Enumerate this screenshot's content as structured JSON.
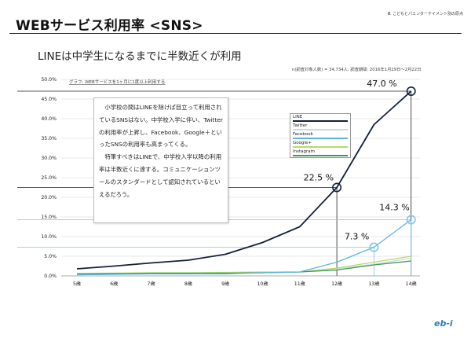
{
  "header": {
    "title": "WEBサービス利用率 <SNS>",
    "note": "Ⅲ. こどもとパエンターテイメント別の原点"
  },
  "subtitle": "LINEは中学生になるまでに半数近くが利用",
  "survey_note": "n(調査対象人数) = 34,734人, 調査期間: 2016年1月29日〜2月22日",
  "textbox": {
    "paragraph1": "小学校の間はLINEを除けば目立って利用されているSNSはない。中学校入学に伴い、Twitterの利用率が上昇し、Facebook、Google＋といったSNSの利用率も高まってくる。",
    "paragraph2": "特筆すべきはLINEで、中学校入学以降の利用率は半数近くに達する。コミュニケーションツールのスタンダードとして認知されているといえるだろう。"
  },
  "colors": {
    "line": "#14213d",
    "twitter": "#cfd8e0",
    "facebook": "#5bb5e6",
    "google": "#b8d96a",
    "instagram": "#3a9a5a",
    "reference": "#222222",
    "highlight_blue": "#7fc6ec"
  },
  "chart_data": {
    "type": "line",
    "title": "グラフ: WEBサービスを1ヶ月に1度以上利用する",
    "xlabel": "",
    "ylabel": "",
    "categories": [
      "5歳",
      "6歳",
      "7歳",
      "8歳",
      "9歳",
      "10歳",
      "11歳",
      "12歳",
      "13歳",
      "14歳"
    ],
    "ylim": [
      0,
      50
    ],
    "yticks": [
      "0.0%",
      "5.0%",
      "10.0%",
      "15.0%",
      "20.0%",
      "25.0%",
      "30.0%",
      "35.0%",
      "40.0%",
      "45.0%",
      "50.0%"
    ],
    "grid": true,
    "legend_position": "center-right",
    "series": [
      {
        "name": "LINE",
        "color": "#14213d",
        "values": [
          1.8,
          2.5,
          3.3,
          4.0,
          5.5,
          8.5,
          12.5,
          22.5,
          38.5,
          47.0
        ]
      },
      {
        "name": "Twitter",
        "color": "#cfd8e0",
        "values": [
          0.3,
          0.4,
          0.5,
          0.5,
          0.6,
          0.8,
          1.0,
          1.8,
          3.0,
          4.5
        ]
      },
      {
        "name": "Facebook",
        "color": "#5bb5e6",
        "values": [
          0.3,
          0.4,
          0.5,
          0.5,
          0.5,
          0.8,
          1.0,
          3.5,
          7.3,
          14.3
        ]
      },
      {
        "name": "Google+",
        "color": "#b8d96a",
        "values": [
          0.6,
          0.7,
          0.8,
          0.8,
          0.9,
          1.0,
          1.0,
          2.0,
          3.5,
          5.0
        ]
      },
      {
        "name": "Instagram",
        "color": "#3a9a5a",
        "values": [
          0.5,
          0.6,
          0.7,
          0.7,
          0.7,
          0.8,
          1.0,
          1.5,
          2.8,
          3.8
        ]
      }
    ],
    "annotations": [
      {
        "label": "47.0 %",
        "series": "LINE",
        "category": "14歳",
        "value": 47.0
      },
      {
        "label": "22.5 %",
        "series": "LINE",
        "category": "12歳",
        "value": 22.5
      },
      {
        "label": "14.3 %",
        "series": "Facebook",
        "category": "14歳",
        "value": 14.3
      },
      {
        "label": "7.3 %",
        "series": "Facebook",
        "category": "13歳",
        "value": 7.3
      }
    ]
  }
}
